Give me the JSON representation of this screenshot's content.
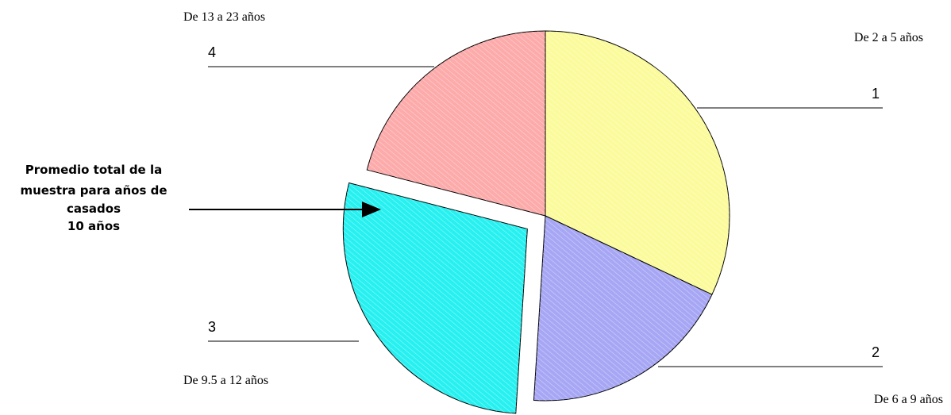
{
  "chart_data": {
    "type": "pie",
    "slices": [
      {
        "number": "1",
        "range_label": "De 2 a 5 años",
        "value": 32,
        "color": "#fbfb9c"
      },
      {
        "number": "2",
        "range_label": "De 6 a 9 años",
        "value": 19,
        "color": "#a6a6f4"
      },
      {
        "number": "3",
        "range_label": "De 9.5 a 12 años",
        "value": 28,
        "color": "#27f0f0",
        "exploded": true
      },
      {
        "number": "4",
        "range_label": "De 13 a 23 años",
        "value": 21,
        "color": "#fcaaaa"
      }
    ],
    "annotation": {
      "lines": [
        "Promedio total de la",
        "muestra para años de",
        "casados",
        "10 años"
      ]
    }
  }
}
